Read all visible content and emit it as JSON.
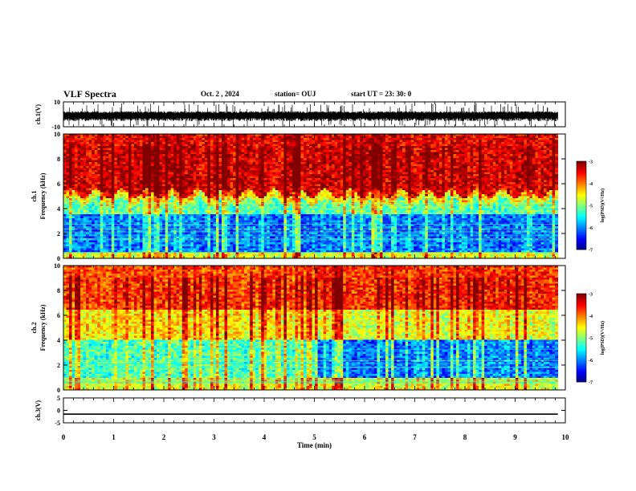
{
  "header": {
    "title": "VLF Spectra",
    "date": "Oct. 2  , 2024",
    "station": "station= OUJ",
    "start": "start  UT  =   23: 30: 0"
  },
  "chart_data": [
    {
      "type": "line",
      "panel": "ch1_waveform",
      "ylabel": "ch.1(V)",
      "ylim": [
        -10,
        10
      ],
      "yticks": [
        "10",
        "-10"
      ],
      "xlim": [
        0,
        10
      ],
      "description_series": [
        {
          "name": "ch.1",
          "typical_range": [
            -8,
            3
          ]
        }
      ]
    },
    {
      "type": "heatmap",
      "panel": "ch1_spectrogram",
      "ylabel": "ch.1\nFrequency  (kHz)",
      "ylim": [
        0,
        10
      ],
      "yticks": [
        "0",
        "2",
        "4",
        "6",
        "8",
        "10"
      ],
      "xlim": [
        0,
        9.85
      ],
      "colorbar": {
        "label": "log(PSD)(V²/Hz)",
        "range": [
          -7,
          -3
        ],
        "ticks": [
          "-3",
          "-4",
          "-5",
          "-6",
          "-7"
        ]
      },
      "bands": [
        {
          "freq_khz": [
            0,
            0.5
          ],
          "log_psd": -4.5
        },
        {
          "freq_khz": [
            0.5,
            3.5
          ],
          "log_psd": -6.2
        },
        {
          "freq_khz": [
            3.5,
            5.0
          ],
          "log_psd": -5.2
        },
        {
          "freq_khz": [
            5.0,
            10
          ],
          "log_psd": -3.6
        }
      ]
    },
    {
      "type": "heatmap",
      "panel": "ch2_spectrogram",
      "ylabel": "ch.2\nFrequency  (kHz)",
      "ylim": [
        0,
        10
      ],
      "yticks": [
        "0",
        "2",
        "4",
        "6",
        "8",
        "10"
      ],
      "xlim": [
        0,
        9.85
      ],
      "colorbar": {
        "label": "log(PSD)(V²/Hz)",
        "range": [
          -7,
          -3
        ],
        "ticks": [
          "-3",
          "-4",
          "-5",
          "-6",
          "-7"
        ]
      },
      "bands": [
        {
          "freq_khz": [
            0,
            1.0
          ],
          "log_psd": -4.8
        },
        {
          "freq_khz": [
            1.0,
            4.0
          ],
          "log_psd": -5.6
        },
        {
          "freq_khz": [
            4.0,
            6.5
          ],
          "log_psd": -4.8
        },
        {
          "freq_khz": [
            6.5,
            10
          ],
          "log_psd": -3.9
        }
      ],
      "note_change_at_min": 5.0
    },
    {
      "type": "line",
      "panel": "ch3_waveform",
      "ylabel": "ch.3(V)",
      "ylim": [
        -5,
        5
      ],
      "yticks": [
        "5",
        "0",
        "-5"
      ],
      "xlim": [
        0,
        10
      ],
      "xlabel": "Time  (min)",
      "xticks": [
        "0",
        "1",
        "2",
        "3",
        "4",
        "5",
        "6",
        "7",
        "8",
        "9",
        "10"
      ],
      "series": [
        {
          "name": "ch.3",
          "x": [
            0,
            9.85
          ],
          "y": [
            -1.5,
            -1.5
          ]
        }
      ]
    }
  ]
}
